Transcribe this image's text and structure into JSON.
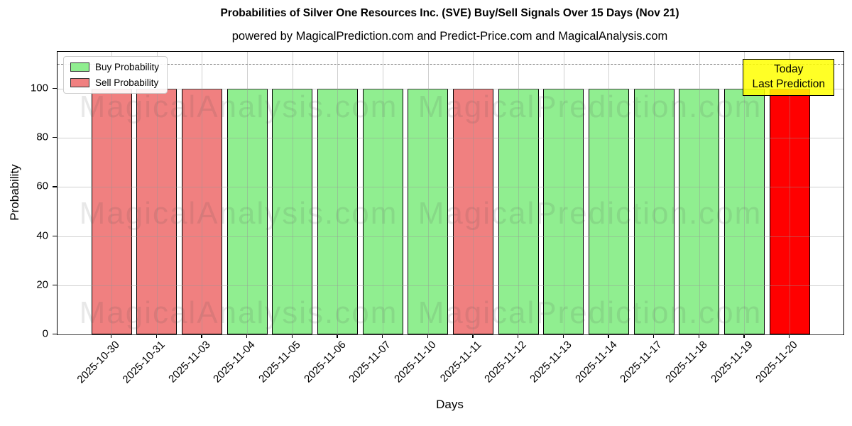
{
  "chart_data": {
    "type": "bar",
    "title": "Probabilities of Silver One Resources Inc. (SVE) Buy/Sell Signals Over 15 Days (Nov 21)",
    "subtitle": "powered by MagicalPrediction.com and Predict-Price.com and MagicalAnalysis.com",
    "xlabel": "Days",
    "ylabel": "Probability",
    "ylim": [
      0,
      115
    ],
    "yticks": [
      0,
      20,
      40,
      60,
      80,
      100
    ],
    "grid": true,
    "threshold_line": {
      "y": 110,
      "style": "dashed",
      "color": "#7a7a7a"
    },
    "categories": [
      "2025-10-30",
      "2025-10-31",
      "2025-11-03",
      "2025-11-04",
      "2025-11-05",
      "2025-11-06",
      "2025-11-07",
      "2025-11-10",
      "2025-11-11",
      "2025-11-12",
      "2025-11-13",
      "2025-11-14",
      "2025-11-17",
      "2025-11-18",
      "2025-11-19",
      "2025-11-20"
    ],
    "values": [
      100,
      100,
      100,
      100,
      100,
      100,
      100,
      100,
      100,
      100,
      100,
      100,
      100,
      100,
      100,
      100
    ],
    "signals": [
      "sell",
      "sell",
      "sell",
      "buy",
      "buy",
      "buy",
      "buy",
      "buy",
      "sell",
      "buy",
      "buy",
      "buy",
      "buy",
      "buy",
      "buy",
      "today"
    ],
    "colors": {
      "buy": "#90ee90",
      "sell": "#f08080",
      "today": "#ff0000",
      "bar_edge": "#000000"
    },
    "legend": {
      "position": "upper left",
      "items": [
        {
          "label": "Buy Probability",
          "color": "#90ee90"
        },
        {
          "label": "Sell Probability",
          "color": "#f08080"
        }
      ]
    },
    "annotation": {
      "line1": "Today",
      "line2": "Last Prediction",
      "bg_color": "#ffff00"
    },
    "watermarks": {
      "left_text": "MagicalAnalysis.com",
      "right_text": "MagicalPrediction.com",
      "rows": 3
    }
  }
}
